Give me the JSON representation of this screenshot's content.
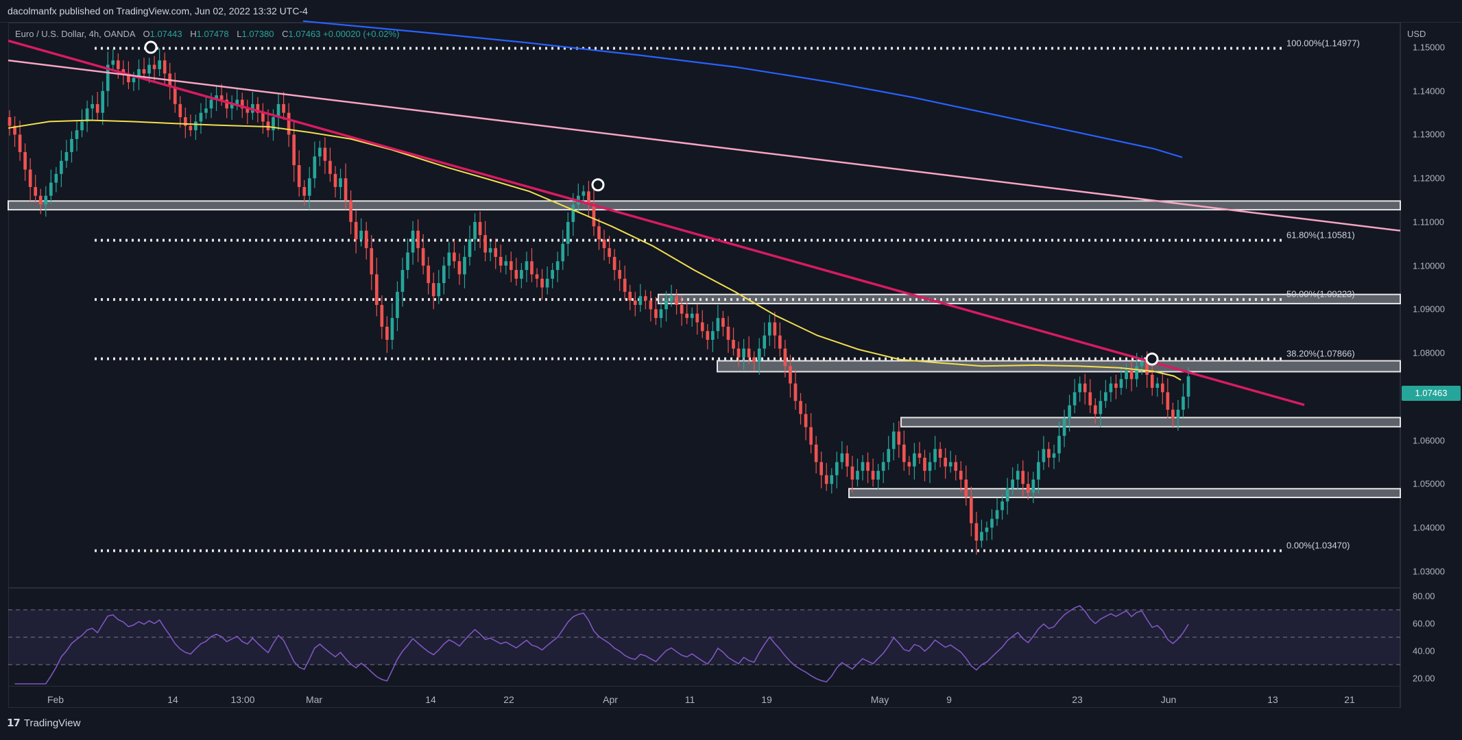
{
  "header": {
    "publisher_text": "dacolmanfx published on TradingView.com, Jun 02, 2022 13:32 UTC-4"
  },
  "legend": {
    "symbol": "Euro / U.S. Dollar, 4h, OANDA",
    "o_label": "O",
    "o": "1.07443",
    "h_label": "H",
    "h": "1.07478",
    "l_label": "L",
    "l": "1.07380",
    "c_label": "C",
    "c": "1.07463",
    "change": "+0.00020 (+0.02%)"
  },
  "currency": "USD",
  "last_price": "1.07463",
  "footer": {
    "logo_mark": "𝟭𝟳",
    "brand": "TradingView"
  },
  "colors": {
    "background": "#131722",
    "up": "#26a69a",
    "down": "#ef5350",
    "ma_short": "#f4e04d",
    "ma_long": "#2962ff",
    "trend_red": "#d81b60",
    "trend_pink": "#f8a5c2",
    "rsi": "#7e57c2"
  },
  "chart_data": {
    "type": "candlestick",
    "instrument": "EUR/USD",
    "timeframe": "4h",
    "y_axis": {
      "ylim": [
        1.0265,
        1.1555
      ],
      "ticks": [
        "1.15000",
        "1.14000",
        "1.13000",
        "1.12000",
        "1.11000",
        "1.10000",
        "1.09000",
        "1.08000",
        "1.07000",
        "1.06000",
        "1.05000",
        "1.04000",
        "1.03000"
      ]
    },
    "x_axis": {
      "ticks": [
        "Feb",
        "14",
        "13:00",
        "Mar",
        "14",
        "22",
        "Apr",
        "11",
        "19",
        "May",
        "9",
        "23",
        "Jun",
        "13",
        "21"
      ]
    },
    "fib_levels": [
      {
        "label": "100.00%(1.14977)",
        "value": 1.14977
      },
      {
        "label": "61.80%(1.10581)",
        "value": 1.10581
      },
      {
        "label": "50.00%(1.09223)",
        "value": 1.09223
      },
      {
        "label": "38.20%(1.07866)",
        "value": 1.07866
      },
      {
        "label": "0.00%(1.03470)",
        "value": 1.0347
      }
    ],
    "zones": [
      {
        "from": 1.1128,
        "to": 1.1148
      },
      {
        "from": 1.0913,
        "to": 1.0934
      },
      {
        "from": 1.0757,
        "to": 1.0782
      },
      {
        "from": 1.0631,
        "to": 1.0652
      },
      {
        "from": 1.0469,
        "to": 1.0489
      }
    ],
    "closes": [
      1.132,
      1.13,
      1.126,
      1.122,
      1.118,
      1.116,
      1.114,
      1.116,
      1.119,
      1.121,
      1.124,
      1.126,
      1.129,
      1.131,
      1.133,
      1.136,
      1.137,
      1.135,
      1.14,
      1.146,
      1.147,
      1.145,
      1.144,
      1.142,
      1.143,
      1.145,
      1.144,
      1.146,
      1.145,
      1.147,
      1.144,
      1.141,
      1.137,
      1.134,
      1.132,
      1.131,
      1.133,
      1.135,
      1.136,
      1.138,
      1.139,
      1.138,
      1.136,
      1.137,
      1.138,
      1.136,
      1.135,
      1.137,
      1.135,
      1.133,
      1.131,
      1.134,
      1.137,
      1.135,
      1.13,
      1.123,
      1.118,
      1.116,
      1.12,
      1.125,
      1.127,
      1.124,
      1.121,
      1.118,
      1.12,
      1.115,
      1.11,
      1.106,
      1.108,
      1.104,
      1.098,
      1.091,
      1.086,
      1.083,
      1.088,
      1.094,
      1.099,
      1.103,
      1.108,
      1.104,
      1.1,
      1.096,
      1.093,
      1.096,
      1.1,
      1.103,
      1.101,
      1.098,
      1.102,
      1.106,
      1.11,
      1.107,
      1.103,
      1.104,
      1.102,
      1.1,
      1.101,
      1.099,
      1.097,
      1.099,
      1.101,
      1.098,
      1.097,
      1.095,
      1.097,
      1.099,
      1.101,
      1.105,
      1.11,
      1.114,
      1.116,
      1.117,
      1.114,
      1.109,
      1.106,
      1.104,
      1.102,
      1.099,
      1.097,
      1.094,
      1.092,
      1.091,
      1.093,
      1.092,
      1.09,
      1.088,
      1.09,
      1.092,
      1.093,
      1.091,
      1.089,
      1.088,
      1.089,
      1.087,
      1.085,
      1.083,
      1.085,
      1.088,
      1.086,
      1.083,
      1.081,
      1.079,
      1.081,
      1.079,
      1.078,
      1.081,
      1.084,
      1.087,
      1.084,
      1.081,
      1.077,
      1.073,
      1.069,
      1.066,
      1.063,
      1.059,
      1.055,
      1.052,
      1.05,
      1.052,
      1.055,
      1.057,
      1.054,
      1.051,
      1.053,
      1.055,
      1.053,
      1.051,
      1.053,
      1.055,
      1.058,
      1.062,
      1.059,
      1.055,
      1.054,
      1.057,
      1.056,
      1.053,
      1.055,
      1.058,
      1.056,
      1.054,
      1.055,
      1.053,
      1.051,
      1.047,
      1.041,
      1.037,
      1.039,
      1.04,
      1.042,
      1.044,
      1.046,
      1.049,
      1.051,
      1.053,
      1.05,
      1.048,
      1.051,
      1.055,
      1.058,
      1.056,
      1.057,
      1.061,
      1.065,
      1.068,
      1.071,
      1.073,
      1.071,
      1.068,
      1.066,
      1.069,
      1.071,
      1.073,
      1.072,
      1.074,
      1.076,
      1.074,
      1.077,
      1.078,
      1.075,
      1.072,
      1.073,
      1.071,
      1.067,
      1.065,
      1.067,
      1.07,
      1.07463
    ],
    "ma_short": [
      [
        0,
        1.1315
      ],
      [
        60,
        1.133
      ],
      [
        120,
        1.1333
      ],
      [
        180,
        1.133
      ],
      [
        250,
        1.1325
      ],
      [
        300,
        1.1322
      ],
      [
        380,
        1.1318
      ],
      [
        440,
        1.1305
      ],
      [
        500,
        1.129
      ],
      [
        560,
        1.1265
      ],
      [
        640,
        1.1225
      ],
      [
        700,
        1.1198
      ],
      [
        760,
        1.117
      ],
      [
        820,
        1.113
      ],
      [
        880,
        1.109
      ],
      [
        940,
        1.1045
      ],
      [
        1000,
        1.099
      ],
      [
        1060,
        1.094
      ],
      [
        1120,
        1.0885
      ],
      [
        1180,
        1.084
      ],
      [
        1240,
        1.0808
      ],
      [
        1300,
        1.0785
      ],
      [
        1360,
        1.0777
      ],
      [
        1420,
        1.077
      ],
      [
        1500,
        1.0772
      ],
      [
        1560,
        1.077
      ],
      [
        1620,
        1.0766
      ],
      [
        1670,
        1.0758
      ],
      [
        1700,
        1.0747
      ],
      [
        1710,
        1.0738
      ]
    ],
    "ma_long": [
      [
        430,
        1.156
      ],
      [
        600,
        1.1535
      ],
      [
        760,
        1.151
      ],
      [
        920,
        1.1482
      ],
      [
        1060,
        1.1455
      ],
      [
        1200,
        1.142
      ],
      [
        1320,
        1.1385
      ],
      [
        1440,
        1.1345
      ],
      [
        1560,
        1.1305
      ],
      [
        1670,
        1.1268
      ],
      [
        1712,
        1.1248
      ]
    ],
    "trendlines": [
      {
        "name": "red",
        "points": [
          [
            12,
            1.1515
          ],
          [
            1902,
            1.0681
          ]
        ]
      },
      {
        "name": "pink",
        "points": [
          [
            12,
            1.147
          ],
          [
            2042,
            1.108
          ]
        ]
      }
    ],
    "swing_markers": [
      [
        220,
        1.15
      ],
      [
        872,
        1.1185
      ],
      [
        1680,
        1.0786
      ]
    ],
    "rsi": {
      "ticks": [
        "80.00",
        "60.00",
        "40.00",
        "20.00"
      ],
      "levels": [
        70,
        50,
        30
      ],
      "ylim": [
        15,
        85
      ]
    }
  }
}
